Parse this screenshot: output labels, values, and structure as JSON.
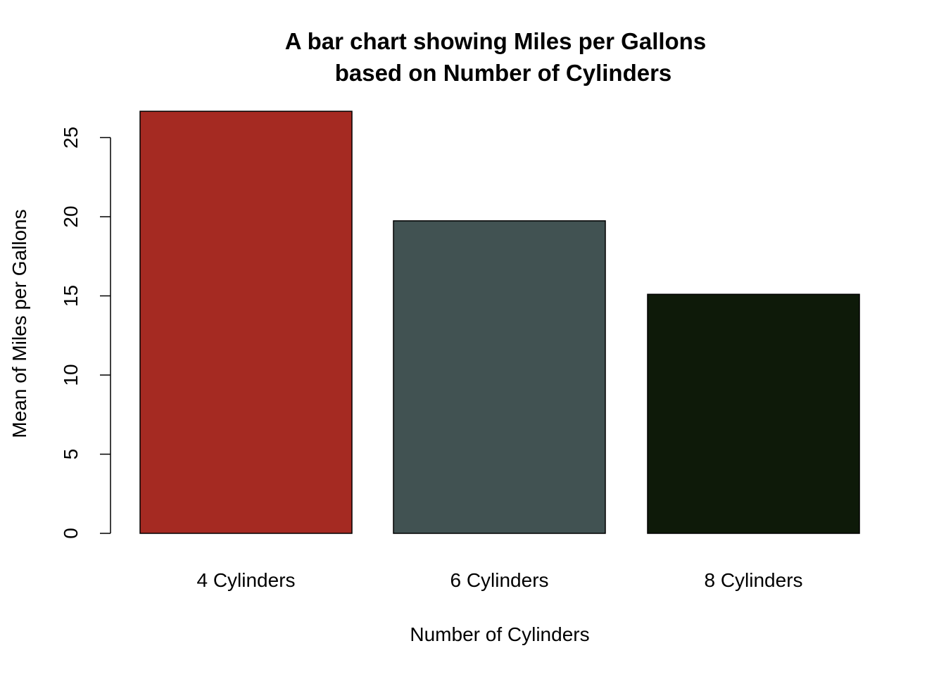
{
  "chart_data": {
    "type": "bar",
    "title": "A bar chart showing Miles per Gallons\nbased on Number of Cylinders",
    "title_lines": [
      "A bar chart showing Miles per Gallons",
      "based on Number of Cylinders"
    ],
    "xlabel": "Number of Cylinders",
    "ylabel": "Mean of Miles per Gallons",
    "categories": [
      "4 Cylinders",
      "6 Cylinders",
      "8 Cylinders"
    ],
    "values": [
      26.66,
      19.74,
      15.1
    ],
    "colors": [
      "#a52a22",
      "#415252",
      "#0e1a09"
    ],
    "ylim": [
      0,
      27.3
    ],
    "yticks": [
      0,
      5,
      10,
      15,
      20,
      25
    ],
    "grid": false,
    "legend": "none"
  }
}
